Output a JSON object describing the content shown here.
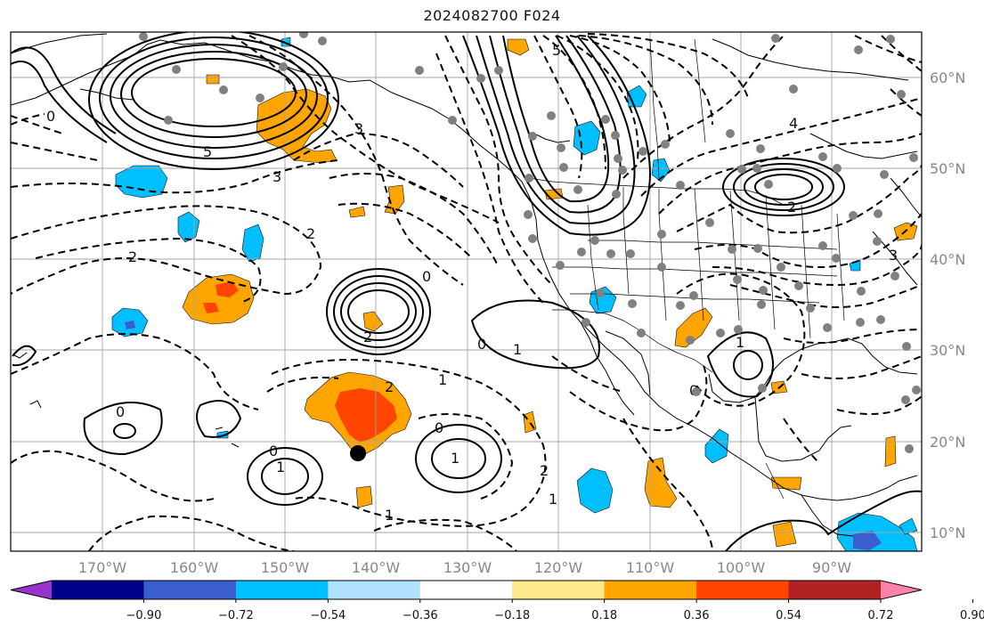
{
  "title": "2024082700 F024",
  "lat_ticks": [
    {
      "value": 60,
      "label": "60°N"
    },
    {
      "value": 50,
      "label": "50°N"
    },
    {
      "value": 40,
      "label": "40°N"
    },
    {
      "value": 30,
      "label": "30°N"
    },
    {
      "value": 20,
      "label": "20°N"
    },
    {
      "value": 10,
      "label": "10°N"
    }
  ],
  "lon_ticks": [
    {
      "value": -170,
      "label": "170°W"
    },
    {
      "value": -160,
      "label": "160°W"
    },
    {
      "value": -150,
      "label": "150°W"
    },
    {
      "value": -140,
      "label": "140°W"
    },
    {
      "value": -130,
      "label": "130°W"
    },
    {
      "value": -120,
      "label": "120°W"
    },
    {
      "value": -110,
      "label": "110°W"
    },
    {
      "value": -100,
      "label": "100°W"
    },
    {
      "value": -90,
      "label": "90°W"
    }
  ],
  "extent": {
    "lon_min": -180,
    "lon_max": -80,
    "lat_min": 8,
    "lat_max": 65
  },
  "colorbar": {
    "colors": [
      "#9932cc",
      "#00008b",
      "#3a5fcd",
      "#00bfff",
      "#b0e2ff",
      "#ffffff",
      "#fde98b",
      "#ffa500",
      "#ff4500",
      "#b22222",
      "#ff82ab"
    ],
    "tick_labels": [
      "−0.90",
      "−0.72",
      "−0.54",
      "−0.36",
      "−0.18",
      "0.18",
      "0.36",
      "0.54",
      "0.72",
      "0.90"
    ]
  },
  "contour_labels": [
    "5",
    "5",
    "4",
    "3",
    "3",
    "2",
    "2",
    "2",
    "2",
    "1",
    "1",
    "1",
    "1",
    "0",
    "0",
    "0",
    "0",
    "0",
    "0",
    "1",
    "2",
    "1",
    "1",
    "2",
    "3",
    "0"
  ],
  "marker": {
    "lon": -141.5,
    "lat": 18.7
  }
}
